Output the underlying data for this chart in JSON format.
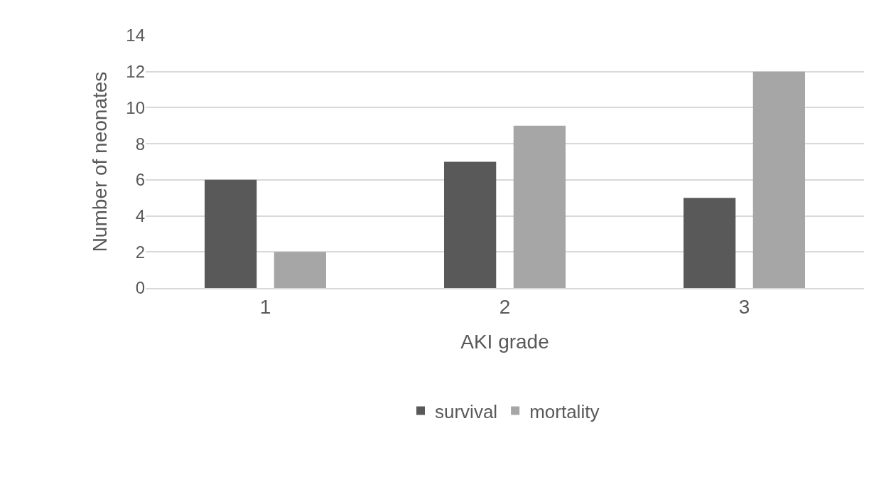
{
  "chart_data": {
    "type": "bar",
    "xlabel": "AKI grade",
    "ylabel": "Number of neonates",
    "categories": [
      "1",
      "2",
      "3"
    ],
    "series": [
      {
        "name": "survival",
        "color": "#595959",
        "values": [
          6,
          7,
          5
        ]
      },
      {
        "name": "mortality",
        "color": "#a6a6a6",
        "values": [
          2,
          9,
          12
        ]
      }
    ],
    "ylim": [
      0,
      14
    ],
    "yticks": [
      0,
      2,
      4,
      6,
      8,
      10,
      12,
      14
    ],
    "grid": "y",
    "legend": "bottom"
  }
}
